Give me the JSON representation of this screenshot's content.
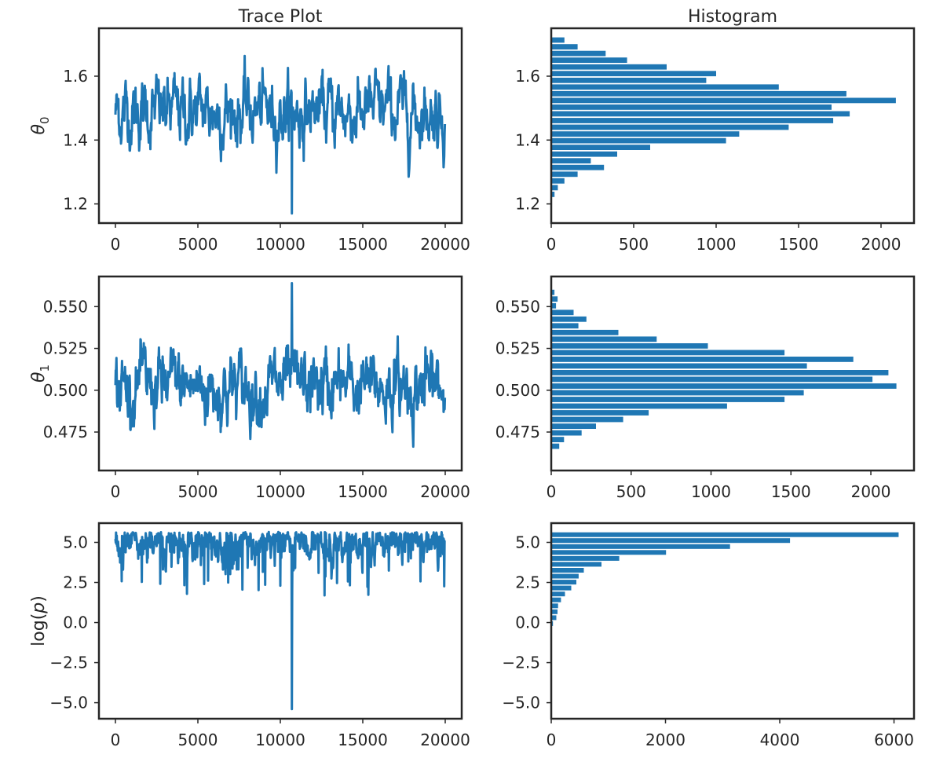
{
  "chart_data": [
    {
      "type": "line",
      "title": "Trace Plot",
      "xlabel": "",
      "ylabel": "θ0",
      "xlim": [
        -1000,
        21000
      ],
      "ylim": [
        1.14,
        1.75
      ],
      "xticks": [
        0,
        5000,
        10000,
        15000,
        20000
      ],
      "yticks": [
        1.2,
        1.4,
        1.6
      ],
      "yticklabels": [
        "1.2",
        "1.4",
        "1.6"
      ],
      "trace": {
        "n": 20000,
        "center": 1.49,
        "spread": 0.055,
        "min": 1.17,
        "max": 1.72,
        "min_at": 10700
      },
      "color": "#1f77b4"
    },
    {
      "type": "bar",
      "orientation": "horizontal",
      "title": "Histogram",
      "xlabel": "",
      "ylabel": "",
      "xlim": [
        0,
        2200
      ],
      "ylim": [
        1.14,
        1.75
      ],
      "xticks": [
        0,
        500,
        1000,
        1500,
        2000
      ],
      "yticks": [
        1.2,
        1.4,
        1.6
      ],
      "yticklabels": [
        "1.2",
        "1.4",
        "1.6"
      ],
      "bin_centers": [
        1.167,
        1.188,
        1.209,
        1.23,
        1.251,
        1.272,
        1.293,
        1.314,
        1.335,
        1.356,
        1.377,
        1.398,
        1.419,
        1.44,
        1.461,
        1.482,
        1.503,
        1.524,
        1.545,
        1.566,
        1.587,
        1.608,
        1.629,
        1.65,
        1.671,
        1.692,
        1.713
      ],
      "counts": [
        2,
        3,
        5,
        20,
        40,
        80,
        160,
        320,
        240,
        400,
        600,
        1060,
        1140,
        1440,
        1710,
        1810,
        1700,
        2090,
        1790,
        1380,
        940,
        1000,
        700,
        460,
        330,
        160,
        80
      ],
      "color": "#1f77b4"
    },
    {
      "type": "line",
      "title": "",
      "xlabel": "",
      "ylabel": "θ1",
      "xlim": [
        -1000,
        21000
      ],
      "ylim": [
        0.452,
        0.568
      ],
      "xticks": [
        0,
        5000,
        10000,
        15000,
        20000
      ],
      "yticks": [
        0.475,
        0.5,
        0.525,
        0.55
      ],
      "yticklabels": [
        "0.475",
        "0.500",
        "0.525",
        "0.550"
      ],
      "trace": {
        "n": 20000,
        "center": 0.502,
        "spread": 0.011,
        "min": 0.456,
        "max": 0.564,
        "max_at": 10700
      },
      "color": "#1f77b4"
    },
    {
      "type": "bar",
      "orientation": "horizontal",
      "title": "",
      "xlabel": "",
      "ylabel": "",
      "xlim": [
        0,
        2270
      ],
      "ylim": [
        0.452,
        0.568
      ],
      "xticks": [
        0,
        500,
        1000,
        1500,
        2000
      ],
      "yticks": [
        0.475,
        0.5,
        0.525,
        0.55
      ],
      "yticklabels": [
        "0.475",
        "0.500",
        "0.525",
        "0.550"
      ],
      "bin_centers": [
        0.4585,
        0.4625,
        0.4665,
        0.4705,
        0.4745,
        0.4785,
        0.4825,
        0.4865,
        0.4905,
        0.4945,
        0.4985,
        0.5025,
        0.5065,
        0.5105,
        0.5145,
        0.5185,
        0.5225,
        0.5265,
        0.5305,
        0.5345,
        0.5385,
        0.5425,
        0.5465,
        0.5505,
        0.5545,
        0.5585,
        0.5625
      ],
      "counts": [
        2,
        1,
        50,
        80,
        190,
        280,
        450,
        610,
        1100,
        1460,
        1580,
        2160,
        2010,
        2110,
        1600,
        1890,
        1460,
        980,
        660,
        420,
        170,
        220,
        140,
        30,
        40,
        20,
        1
      ],
      "color": "#1f77b4"
    },
    {
      "type": "line",
      "title": "",
      "xlabel": "",
      "ylabel": "log(p)",
      "xlim": [
        -1000,
        21000
      ],
      "ylim": [
        -6.0,
        6.2
      ],
      "xticks": [
        0,
        5000,
        10000,
        15000,
        20000
      ],
      "yticks": [
        -5.0,
        -2.5,
        0.0,
        2.5,
        5.0
      ],
      "yticklabels": [
        "−5.0",
        "−2.5",
        "0.0",
        "2.5",
        "5.0"
      ],
      "trace": {
        "n": 20000,
        "center": 4.6,
        "spread": 0.9,
        "max": 5.65,
        "min": -5.4,
        "min_at": 10700
      },
      "color": "#1f77b4"
    },
    {
      "type": "bar",
      "orientation": "horizontal",
      "title": "",
      "xlabel": "",
      "ylabel": "",
      "xlim": [
        0,
        6350
      ],
      "ylim": [
        -6.0,
        6.2
      ],
      "xticks": [
        0,
        2000,
        4000,
        6000
      ],
      "yticks": [
        -5.0,
        -2.5,
        0.0,
        2.5,
        5.0
      ],
      "yticklabels": [
        "−5.0",
        "−2.5",
        "0.0",
        "2.5",
        "5.0"
      ],
      "bin_centers": [
        -5.25,
        -4.88,
        -4.51,
        -4.14,
        -3.77,
        -3.4,
        -3.03,
        -2.66,
        -2.29,
        -1.92,
        -1.55,
        -1.18,
        -0.81,
        -0.44,
        -0.07,
        0.3,
        0.67,
        1.04,
        1.41,
        1.78,
        2.15,
        2.52,
        2.89,
        3.26,
        3.63,
        4.0,
        4.37,
        4.74,
        5.11,
        5.48
      ],
      "counts": [
        1,
        0,
        0,
        0,
        0,
        0,
        0,
        0,
        1,
        1,
        1,
        2,
        3,
        6,
        30,
        90,
        110,
        120,
        170,
        240,
        350,
        440,
        480,
        570,
        880,
        1190,
        2010,
        3130,
        4180,
        6080
      ],
      "color": "#1f77b4"
    }
  ]
}
